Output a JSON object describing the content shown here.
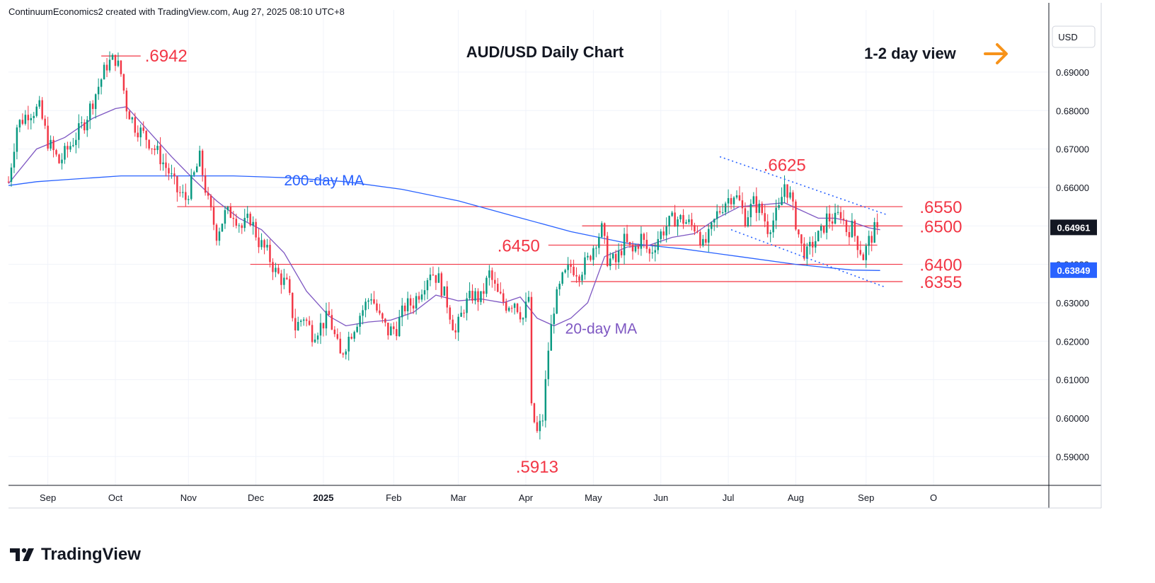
{
  "header": {
    "credit": "ContinuumEconomics2 created with TradingView.com, Aug 27, 2025 08:10 UTC+8"
  },
  "footer": {
    "brand": "TradingView"
  },
  "chart_data": {
    "type": "candlestick",
    "title": "AUD/USD Daily Chart",
    "view_label": "1-2 day view",
    "view_arrow_color": "#f7931a",
    "currency_label": "USD",
    "y_range": [
      0.5825,
      0.7025
    ],
    "y_ticks": [
      "0.69000",
      "0.68000",
      "0.67000",
      "0.66000",
      "0.65000",
      "0.64000",
      "0.63000",
      "0.62000",
      "0.61000",
      "0.60000",
      "0.59000"
    ],
    "x_range": [
      0,
      370
    ],
    "x_ticks": [
      {
        "label": "Sep",
        "x": 14,
        "bold": false
      },
      {
        "label": "Oct",
        "x": 38,
        "bold": false
      },
      {
        "label": "Nov",
        "x": 64,
        "bold": false
      },
      {
        "label": "Dec",
        "x": 88,
        "bold": false
      },
      {
        "label": "2025",
        "x": 112,
        "bold": true
      },
      {
        "label": "Feb",
        "x": 137,
        "bold": false
      },
      {
        "label": "Mar",
        "x": 160,
        "bold": false
      },
      {
        "label": "Apr",
        "x": 184,
        "bold": false
      },
      {
        "label": "May",
        "x": 208,
        "bold": false
      },
      {
        "label": "Jun",
        "x": 232,
        "bold": false
      },
      {
        "label": "Jul",
        "x": 256,
        "bold": false
      },
      {
        "label": "Aug",
        "x": 280,
        "bold": false
      },
      {
        "label": "Sep",
        "x": 305,
        "bold": false
      },
      {
        "label": "O",
        "x": 329,
        "bold": false
      }
    ],
    "colors": {
      "up": "#089981",
      "down": "#f23645",
      "level": "#f23645",
      "ma200": "#2962ff",
      "ma20": "#7e57c2",
      "trend": "#2962ff",
      "grid": "#f0f3fa"
    },
    "series_anchors": {
      "price_path": [
        [
          0,
          0.6615
        ],
        [
          3,
          0.676
        ],
        [
          7,
          0.6795
        ],
        [
          11,
          0.6805
        ],
        [
          14,
          0.672
        ],
        [
          18,
          0.6665
        ],
        [
          22,
          0.671
        ],
        [
          27,
          0.677
        ],
        [
          31,
          0.6845
        ],
        [
          35,
          0.692
        ],
        [
          38,
          0.6935
        ],
        [
          40,
          0.6895
        ],
        [
          42,
          0.681
        ],
        [
          45,
          0.676
        ],
        [
          49,
          0.673
        ],
        [
          53,
          0.669
        ],
        [
          57,
          0.664
        ],
        [
          60,
          0.659
        ],
        [
          63,
          0.657
        ],
        [
          65,
          0.661
        ],
        [
          68,
          0.6675
        ],
        [
          71,
          0.656
        ],
        [
          74,
          0.648
        ],
        [
          77,
          0.653
        ],
        [
          80,
          0.6535
        ],
        [
          83,
          0.6495
        ],
        [
          86,
          0.652
        ],
        [
          89,
          0.646
        ],
        [
          92,
          0.643
        ],
        [
          95,
          0.638
        ],
        [
          99,
          0.6345
        ],
        [
          102,
          0.6235
        ],
        [
          105,
          0.6265
        ],
        [
          108,
          0.622
        ],
        [
          111,
          0.624
        ],
        [
          114,
          0.6265
        ],
        [
          118,
          0.616
        ],
        [
          121,
          0.621
        ],
        [
          125,
          0.627
        ],
        [
          129,
          0.632
        ],
        [
          132,
          0.626
        ],
        [
          135,
          0.6225
        ],
        [
          138,
          0.6235
        ],
        [
          141,
          0.629
        ],
        [
          144,
          0.63
        ],
        [
          147,
          0.634
        ],
        [
          150,
          0.6385
        ],
        [
          153,
          0.636
        ],
        [
          156,
          0.63
        ],
        [
          159,
          0.622
        ],
        [
          162,
          0.629
        ],
        [
          165,
          0.632
        ],
        [
          168,
          0.631
        ],
        [
          171,
          0.6375
        ],
        [
          174,
          0.632
        ],
        [
          177,
          0.6295
        ],
        [
          180,
          0.6305
        ],
        [
          183,
          0.626
        ],
        [
          185,
          0.6315
        ],
        [
          186,
          0.602
        ],
        [
          188,
          0.596
        ],
        [
          190,
          0.6
        ],
        [
          192,
          0.618
        ],
        [
          194,
          0.629
        ],
        [
          197,
          0.636
        ],
        [
          200,
          0.6395
        ],
        [
          203,
          0.638
        ],
        [
          206,
          0.641
        ],
        [
          209,
          0.6465
        ],
        [
          211,
          0.649
        ],
        [
          213,
          0.6415
        ],
        [
          216,
          0.6405
        ],
        [
          219,
          0.646
        ],
        [
          222,
          0.643
        ],
        [
          225,
          0.647
        ],
        [
          228,
          0.6425
        ],
        [
          231,
          0.647
        ],
        [
          234,
          0.65
        ],
        [
          237,
          0.652
        ],
        [
          240,
          0.6515
        ],
        [
          243,
          0.65
        ],
        [
          245,
          0.6495
        ],
        [
          247,
          0.6445
        ],
        [
          249,
          0.647
        ],
        [
          252,
          0.653
        ],
        [
          255,
          0.6565
        ],
        [
          258,
          0.6585
        ],
        [
          260,
          0.656
        ],
        [
          262,
          0.652
        ],
        [
          265,
          0.656
        ],
        [
          268,
          0.6535
        ],
        [
          270,
          0.6495
        ],
        [
          272,
          0.6515
        ],
        [
          274,
          0.654
        ],
        [
          276,
          0.661
        ],
        [
          278,
          0.6575
        ],
        [
          280,
          0.651
        ],
        [
          282,
          0.6445
        ],
        [
          284,
          0.6425
        ],
        [
          286,
          0.6455
        ],
        [
          289,
          0.648
        ],
        [
          291,
          0.652
        ],
        [
          294,
          0.6515
        ],
        [
          296,
          0.6535
        ],
        [
          298,
          0.649
        ],
        [
          300,
          0.6495
        ],
        [
          302,
          0.6455
        ],
        [
          304,
          0.642
        ],
        [
          306,
          0.646
        ],
        [
          308,
          0.6488
        ],
        [
          309,
          0.6496
        ]
      ],
      "ma20": [
        [
          0,
          0.661
        ],
        [
          10,
          0.67
        ],
        [
          20,
          0.673
        ],
        [
          30,
          0.678
        ],
        [
          38,
          0.6805
        ],
        [
          42,
          0.681
        ],
        [
          50,
          0.6745
        ],
        [
          58,
          0.668
        ],
        [
          66,
          0.662
        ],
        [
          74,
          0.6565
        ],
        [
          82,
          0.652
        ],
        [
          90,
          0.649
        ],
        [
          98,
          0.643
        ],
        [
          106,
          0.633
        ],
        [
          114,
          0.6265
        ],
        [
          120,
          0.624
        ],
        [
          128,
          0.625
        ],
        [
          136,
          0.6255
        ],
        [
          144,
          0.6275
        ],
        [
          152,
          0.632
        ],
        [
          160,
          0.6305
        ],
        [
          168,
          0.631
        ],
        [
          176,
          0.63
        ],
        [
          182,
          0.6315
        ],
        [
          188,
          0.626
        ],
        [
          194,
          0.624
        ],
        [
          200,
          0.626
        ],
        [
          206,
          0.63
        ],
        [
          212,
          0.642
        ],
        [
          220,
          0.6445
        ],
        [
          228,
          0.645
        ],
        [
          236,
          0.647
        ],
        [
          244,
          0.648
        ],
        [
          252,
          0.652
        ],
        [
          260,
          0.655
        ],
        [
          268,
          0.6555
        ],
        [
          276,
          0.656
        ],
        [
          282,
          0.654
        ],
        [
          288,
          0.652
        ],
        [
          294,
          0.652
        ],
        [
          300,
          0.651
        ],
        [
          306,
          0.6495
        ],
        [
          310,
          0.649
        ]
      ],
      "ma200": [
        [
          0,
          0.6605
        ],
        [
          10,
          0.6615
        ],
        [
          20,
          0.662
        ],
        [
          30,
          0.6625
        ],
        [
          40,
          0.663
        ],
        [
          60,
          0.663
        ],
        [
          80,
          0.663
        ],
        [
          100,
          0.6625
        ],
        [
          120,
          0.6615
        ],
        [
          140,
          0.6595
        ],
        [
          160,
          0.6565
        ],
        [
          180,
          0.6525
        ],
        [
          200,
          0.6485
        ],
        [
          220,
          0.6455
        ],
        [
          240,
          0.644
        ],
        [
          260,
          0.642
        ],
        [
          280,
          0.64
        ],
        [
          300,
          0.6385
        ],
        [
          310,
          0.6384
        ]
      ]
    },
    "moving_averages": [
      {
        "name": "200-day MA",
        "color": "#2962ff"
      },
      {
        "name": "20-day MA",
        "color": "#7e57c2"
      }
    ],
    "levels": [
      {
        "label": ".6550",
        "value": 0.655,
        "x_start": 60,
        "x_end": 318
      },
      {
        "label": ".6500",
        "value": 0.65,
        "x_start": 204,
        "x_end": 318
      },
      {
        "label": ".6450",
        "value": 0.645,
        "x_start": 192,
        "x_end": 309
      },
      {
        "label": ".6400",
        "value": 0.64,
        "x_start": 86,
        "x_end": 318
      },
      {
        "label": ".6355",
        "value": 0.6355,
        "x_start": 200,
        "x_end": 318
      }
    ],
    "annotations": [
      {
        "label": ".6942",
        "x": 37,
        "value": 0.6942
      },
      {
        "label": ".6625",
        "x": 270,
        "value": 0.6625
      },
      {
        "label": ".5913",
        "x": 188,
        "value": 0.5913
      }
    ],
    "high_marker": {
      "x_start": 33,
      "x_end": 47,
      "value": 0.6942
    },
    "trendlines": [
      {
        "from": [
          253,
          0.668
        ],
        "to": [
          312,
          0.653
        ]
      },
      {
        "from": [
          257,
          0.649
        ],
        "to": [
          312,
          0.634
        ]
      }
    ],
    "last_price": {
      "label": "0.64961",
      "value": 0.64961,
      "color": "#131722"
    },
    "ma200_price": {
      "label": "0.63849",
      "value": 0.63849,
      "color": "#2962ff"
    }
  }
}
